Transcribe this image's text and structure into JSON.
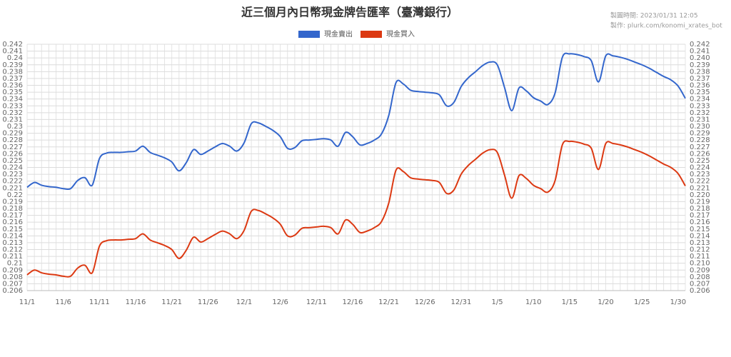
{
  "chart_data": {
    "type": "line",
    "title": "近三個月內日幣現金牌告匯率（臺灣銀行）",
    "notes": [
      "製圖時間: 2023/01/31 12:05",
      "製作: plurk.com/konomi_xrates_bot"
    ],
    "categories": [
      "11/1",
      null,
      null,
      null,
      null,
      "11/6",
      null,
      null,
      null,
      null,
      "11/11",
      null,
      null,
      null,
      null,
      "11/16",
      null,
      null,
      null,
      null,
      "11/21",
      null,
      null,
      null,
      null,
      "11/26",
      null,
      null,
      null,
      null,
      "12/1",
      null,
      null,
      null,
      null,
      "12/6",
      null,
      null,
      null,
      null,
      "12/11",
      null,
      null,
      null,
      null,
      "12/16",
      null,
      null,
      null,
      null,
      "12/21",
      null,
      null,
      null,
      null,
      "12/26",
      null,
      null,
      null,
      null,
      "12/31",
      null,
      null,
      null,
      null,
      "1/5",
      null,
      null,
      null,
      null,
      "1/10",
      null,
      null,
      null,
      null,
      "1/15",
      null,
      null,
      null,
      null,
      "1/20",
      null,
      null,
      null,
      null,
      "1/25",
      null,
      null,
      null,
      null,
      "1/30",
      null
    ],
    "series": [
      {
        "name": "現金賣出",
        "color": "#3366cc",
        "values": [
          0.2211,
          0.2218,
          0.2214,
          0.2212,
          0.2211,
          0.2209,
          0.2209,
          0.2221,
          0.2225,
          0.2214,
          0.2253,
          0.2261,
          0.2262,
          0.2262,
          0.2263,
          0.2264,
          0.2271,
          0.2262,
          0.2258,
          0.2254,
          0.2248,
          0.2235,
          0.2247,
          0.2266,
          0.2259,
          0.2264,
          0.227,
          0.2275,
          0.2271,
          0.2264,
          0.2276,
          0.2304,
          0.2305,
          0.23,
          0.2294,
          0.2285,
          0.2268,
          0.2269,
          0.2279,
          0.228,
          0.2281,
          0.2282,
          0.228,
          0.2271,
          0.2291,
          0.2285,
          0.2273,
          0.2275,
          0.228,
          0.2289,
          0.2316,
          0.2364,
          0.2362,
          0.2353,
          0.2351,
          0.235,
          0.2349,
          0.2346,
          0.233,
          0.2335,
          0.2358,
          0.2371,
          0.238,
          0.2389,
          0.2394,
          0.239,
          0.2357,
          0.2323,
          0.2356,
          0.2352,
          0.2342,
          0.2337,
          0.2332,
          0.2349,
          0.2401,
          0.2406,
          0.2405,
          0.2402,
          0.2396,
          0.2365,
          0.2403,
          0.2403,
          0.2401,
          0.2398,
          0.2394,
          0.239,
          0.2385,
          0.2379,
          0.2373,
          0.2368,
          0.2359,
          0.2341
        ]
      },
      {
        "name": "現金買入",
        "color": "#dc3912",
        "values": [
          0.2083,
          0.209,
          0.2086,
          0.2084,
          0.2083,
          0.2081,
          0.2081,
          0.2093,
          0.2097,
          0.2086,
          0.2125,
          0.2133,
          0.2134,
          0.2134,
          0.2135,
          0.2136,
          0.2143,
          0.2134,
          0.213,
          0.2126,
          0.212,
          0.2107,
          0.2119,
          0.2138,
          0.2131,
          0.2136,
          0.2142,
          0.2147,
          0.2143,
          0.2136,
          0.2148,
          0.2176,
          0.2177,
          0.2172,
          0.2166,
          0.2157,
          0.214,
          0.2141,
          0.2151,
          0.2152,
          0.2153,
          0.2154,
          0.2152,
          0.2143,
          0.2163,
          0.2157,
          0.2145,
          0.2147,
          0.2152,
          0.2161,
          0.2188,
          0.2236,
          0.2234,
          0.2225,
          0.2223,
          0.2222,
          0.2221,
          0.2218,
          0.2202,
          0.2207,
          0.223,
          0.2243,
          0.2252,
          0.2261,
          0.2266,
          0.2262,
          0.2229,
          0.2195,
          0.2228,
          0.2224,
          0.2214,
          0.2209,
          0.2204,
          0.2221,
          0.2273,
          0.2278,
          0.2277,
          0.2274,
          0.2268,
          0.2237,
          0.2275,
          0.2275,
          0.2273,
          0.227,
          0.2266,
          0.2262,
          0.2257,
          0.2251,
          0.2245,
          0.224,
          0.2231,
          0.2213
        ]
      }
    ],
    "ylim": [
      0.206,
      0.242
    ],
    "yticks": [
      0.206,
      0.207,
      0.208,
      0.209,
      0.21,
      0.211,
      0.212,
      0.213,
      0.214,
      0.215,
      0.216,
      0.217,
      0.218,
      0.219,
      0.22,
      0.221,
      0.222,
      0.223,
      0.224,
      0.225,
      0.226,
      0.227,
      0.228,
      0.229,
      0.23,
      0.231,
      0.232,
      0.233,
      0.234,
      0.235,
      0.236,
      0.237,
      0.238,
      0.239,
      0.24,
      0.241,
      0.242
    ],
    "y2lim": [
      0.206,
      0.242
    ],
    "y2ticks": [
      0.206,
      0.207,
      0.208,
      0.209,
      {
        "value": 0.21,
        "label": "0.210"
      },
      0.211,
      0.212,
      0.213,
      0.214,
      0.215,
      0.216,
      0.217,
      0.218,
      0.219,
      {
        "value": 0.22,
        "label": "0.220"
      },
      0.221,
      0.222,
      0.223,
      0.224,
      0.225,
      0.226,
      0.227,
      0.228,
      0.229,
      {
        "value": 0.23,
        "label": "0.230"
      },
      0.231,
      0.232,
      0.233,
      0.234,
      0.235,
      0.236,
      0.237,
      0.238,
      0.239,
      {
        "value": 0.24,
        "label": "0.240"
      },
      0.241,
      0.242
    ],
    "grid": true,
    "legend": "top"
  }
}
